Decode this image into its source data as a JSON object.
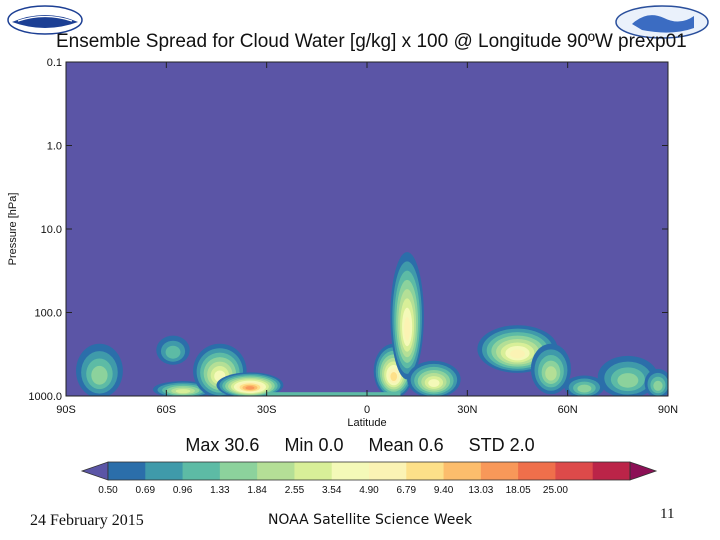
{
  "colors": {
    "background_field": "#5b55a6",
    "contour_levels": [
      "#2b6eaa",
      "#3f9aaa",
      "#5dbba5",
      "#8cd29c",
      "#b4df96",
      "#d8ef98",
      "#f4f9b8",
      "#fbf3b4",
      "#fde089",
      "#fcbd6c",
      "#f89859",
      "#ef6f4b",
      "#dd4a4a",
      "#bb2448"
    ],
    "colorbar_low_end": "#5b55a6",
    "colorbar_high_end": "#8c1056"
  },
  "slide": {
    "date": "24 February 2015",
    "event": "NOAA Satellite Science Week",
    "page_number": "11"
  },
  "chart_data": {
    "type": "heatmap",
    "title": "Ensemble Spread for Cloud Water [g/kg] x 100 @ Longitude  90ºW     prexp01",
    "xlabel": "Latitude",
    "ylabel": "Pressure [hPa]",
    "x_ticks": [
      "90S",
      "60S",
      "30S",
      "0",
      "30N",
      "60N",
      "90N"
    ],
    "x_range": [
      -90,
      90
    ],
    "y_ticks": [
      "0.1",
      "1.0",
      "10.0",
      "100.0",
      "1000.0"
    ],
    "y_range": [
      0.1,
      1000
    ],
    "y_scale": "log",
    "y_inverted": true,
    "stats": {
      "max": "30.6",
      "min": "0.0",
      "mean": "0.6",
      "std": "2.0"
    },
    "stats_labels": {
      "max": "Max",
      "min": "Min",
      "mean": "Mean",
      "std": "STD"
    },
    "colorbar_levels": [
      "0.50",
      "0.69",
      "0.96",
      "1.33",
      "1.84",
      "2.55",
      "3.54",
      "4.90",
      "6.79",
      "9.40",
      "13.03",
      "18.05",
      "25.00"
    ],
    "features": [
      {
        "lat": -80,
        "p_top": 250,
        "p_bottom": 1000,
        "width": 7,
        "peak": 4
      },
      {
        "lat": -58,
        "p_top": 200,
        "p_bottom": 400,
        "width": 5,
        "peak": 3
      },
      {
        "lat": -55,
        "p_top": 700,
        "p_bottom": 1000,
        "width": 9,
        "peak": 6
      },
      {
        "lat": -44,
        "p_top": 250,
        "p_bottom": 1000,
        "width": 8,
        "peak": 7
      },
      {
        "lat": -35,
        "p_top": 550,
        "p_bottom": 1000,
        "width": 10,
        "peak": 11
      },
      {
        "lat": 8,
        "p_top": 250,
        "p_bottom": 1000,
        "width": 6,
        "peak": 9
      },
      {
        "lat": 12,
        "p_top": 20,
        "p_bottom": 600,
        "width": 5,
        "peak": 8
      },
      {
        "lat": 20,
        "p_top": 400,
        "p_bottom": 1000,
        "width": 8,
        "peak": 7
      },
      {
        "lat": 45,
        "p_top": 150,
        "p_bottom": 500,
        "width": 12,
        "peak": 8
      },
      {
        "lat": 55,
        "p_top": 250,
        "p_bottom": 900,
        "width": 6,
        "peak": 5
      },
      {
        "lat": 65,
        "p_top": 600,
        "p_bottom": 1000,
        "width": 6,
        "peak": 4
      },
      {
        "lat": 78,
        "p_top": 350,
        "p_bottom": 1000,
        "width": 9,
        "peak": 4
      },
      {
        "lat": 87,
        "p_top": 500,
        "p_bottom": 1000,
        "width": 4,
        "peak": 4
      }
    ]
  }
}
